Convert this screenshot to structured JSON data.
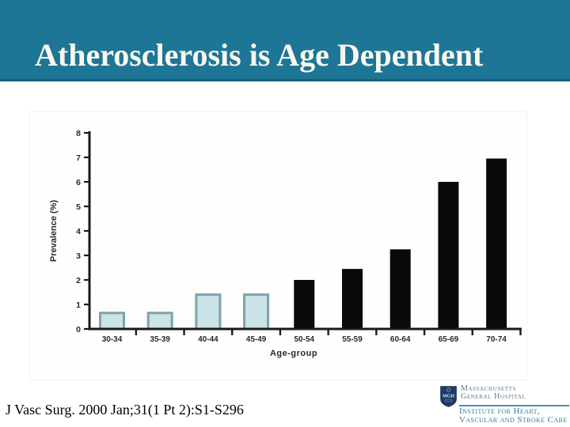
{
  "slide": {
    "title": "Atherosclerosis is Age Dependent",
    "citation": "J Vasc Surg. 2000 Jan;31(1 Pt 2):S1-S296"
  },
  "colors": {
    "header_bg": "#1E7697",
    "header_edge": "#14607C",
    "title_text": "#FAF7EC",
    "logo_shield_navy": "#1C3B66",
    "logo_institute_teal": "#2E7F9D",
    "logo_name_gray_teal": "#5E7B8A",
    "logo_rule": "#4E8CA4"
  },
  "logo": {
    "shield_text": "MGH",
    "name_line1": "Massachusetts",
    "name_line2": "General Hospital",
    "institute_line1": "Institute for Heart,",
    "institute_line2": "Vascular and Stroke Care"
  },
  "chart_data": {
    "type": "bar",
    "title": "",
    "xlabel": "Age-group",
    "ylabel": "Prevalence (%)",
    "categories": [
      "30-34",
      "35-39",
      "40-44",
      "45-49",
      "50-54",
      "55-59",
      "60-64",
      "65-69",
      "70-74"
    ],
    "values": [
      0.65,
      0.65,
      1.4,
      1.4,
      2.0,
      2.45,
      3.25,
      6.0,
      6.95
    ],
    "bar_styles": [
      "light",
      "light",
      "light",
      "light",
      "dark",
      "dark",
      "dark",
      "dark",
      "dark"
    ],
    "ylim": [
      0,
      8
    ],
    "yticks": [
      0,
      1,
      2,
      3,
      4,
      5,
      6,
      7,
      8
    ],
    "grid": false,
    "legend": null,
    "light_fill": "#CBE4E8",
    "light_stroke": "#7FA2AC",
    "dark_fill": "#0A0A0A",
    "axis_color": "#1A1A1A",
    "label_color": "#2A2A2A"
  }
}
